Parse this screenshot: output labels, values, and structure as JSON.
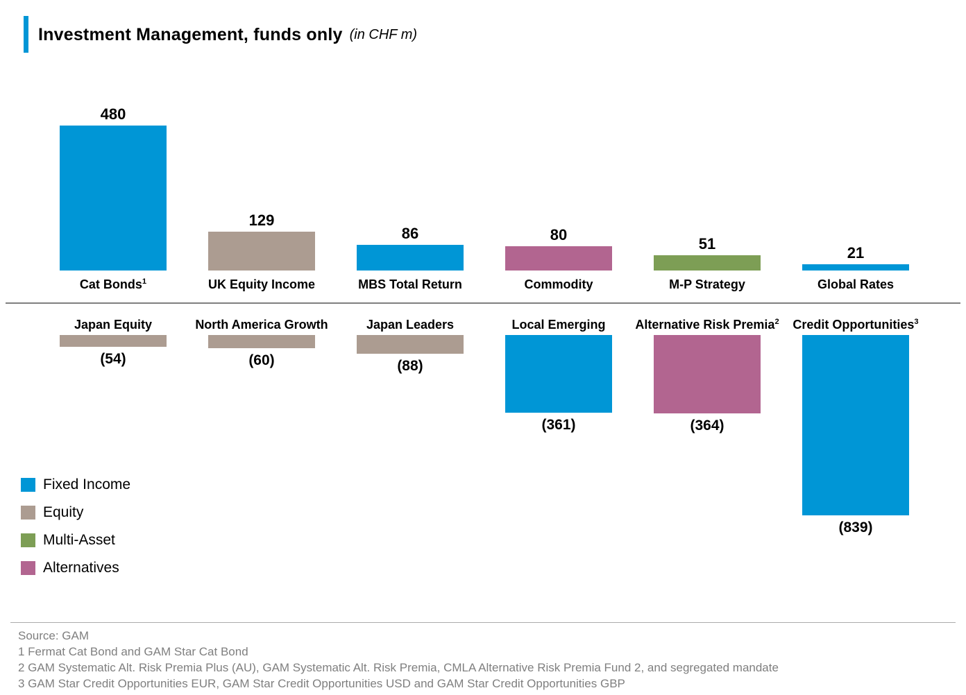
{
  "title": {
    "text": "Investment Management, funds only",
    "unit_note": "(in CHF m)"
  },
  "colors": {
    "fixed_income": "#0096D6",
    "equity": "#AC9C91",
    "multi_asset": "#7D9E55",
    "alternatives": "#B26590",
    "accent_bar": "#0096D6",
    "axis_line": "#7F7F7F",
    "footer_rule": "#ABABAB",
    "footer_text": "#7F7F7F"
  },
  "chart_data": {
    "type": "bar",
    "title": "Investment Management, funds only (in CHF m)",
    "unit": "CHF m",
    "legend_position": "bottom-left",
    "axis": {
      "zero_line": true,
      "value_axis_hidden": true,
      "negative_values_shown_in_parentheses": true
    },
    "series_above_axis": [
      {
        "label": "Cat Bonds",
        "footnote_ref": "1",
        "value": 480,
        "display": "480",
        "class": "Fixed Income",
        "color_key": "fixed_income"
      },
      {
        "label": "UK Equity Income",
        "footnote_ref": "",
        "value": 129,
        "display": "129",
        "class": "Equity",
        "color_key": "equity"
      },
      {
        "label": "MBS Total Return",
        "footnote_ref": "",
        "value": 86,
        "display": "86",
        "class": "Fixed Income",
        "color_key": "fixed_income"
      },
      {
        "label": "Commodity",
        "footnote_ref": "",
        "value": 80,
        "display": "80",
        "class": "Alternatives",
        "color_key": "alternatives"
      },
      {
        "label": "M-P Strategy",
        "footnote_ref": "",
        "value": 51,
        "display": "51",
        "class": "Multi-Asset",
        "color_key": "multi_asset"
      },
      {
        "label": "Global Rates",
        "footnote_ref": "",
        "value": 21,
        "display": "21",
        "class": "Fixed Income",
        "color_key": "fixed_income"
      }
    ],
    "series_below_axis": [
      {
        "label": "Japan Equity",
        "footnote_ref": "",
        "value": -54,
        "display": "(54)",
        "class": "Equity",
        "color_key": "equity"
      },
      {
        "label": "North America Growth",
        "footnote_ref": "",
        "value": -60,
        "display": "(60)",
        "class": "Equity",
        "color_key": "equity"
      },
      {
        "label": "Japan Leaders",
        "footnote_ref": "",
        "value": -88,
        "display": "(88)",
        "class": "Equity",
        "color_key": "equity"
      },
      {
        "label": "Local Emerging",
        "footnote_ref": "",
        "value": -361,
        "display": "(361)",
        "class": "Fixed Income",
        "color_key": "fixed_income"
      },
      {
        "label": "Alternative Risk Premia",
        "footnote_ref": "2",
        "value": -364,
        "display": "(364)",
        "class": "Alternatives",
        "color_key": "alternatives"
      },
      {
        "label": "Credit Opportunities",
        "footnote_ref": "3",
        "value": -839,
        "display": "(839)",
        "class": "Fixed Income",
        "color_key": "fixed_income"
      }
    ]
  },
  "legend": [
    {
      "label": "Fixed Income",
      "color_key": "fixed_income"
    },
    {
      "label": "Equity",
      "color_key": "equity"
    },
    {
      "label": "Multi-Asset",
      "color_key": "multi_asset"
    },
    {
      "label": "Alternatives",
      "color_key": "alternatives"
    }
  ],
  "footer": {
    "source": "Source: GAM",
    "notes": [
      "1 Fermat Cat Bond and GAM Star Cat Bond",
      "2 GAM Systematic Alt. Risk Premia Plus (AU), GAM Systematic Alt. Risk Premia, CMLA Alternative Risk Premia Fund 2, and segregated mandate",
      "3 GAM Star Credit Opportunities EUR, GAM Star Credit Opportunities USD and GAM Star Credit Opportunities GBP"
    ]
  }
}
